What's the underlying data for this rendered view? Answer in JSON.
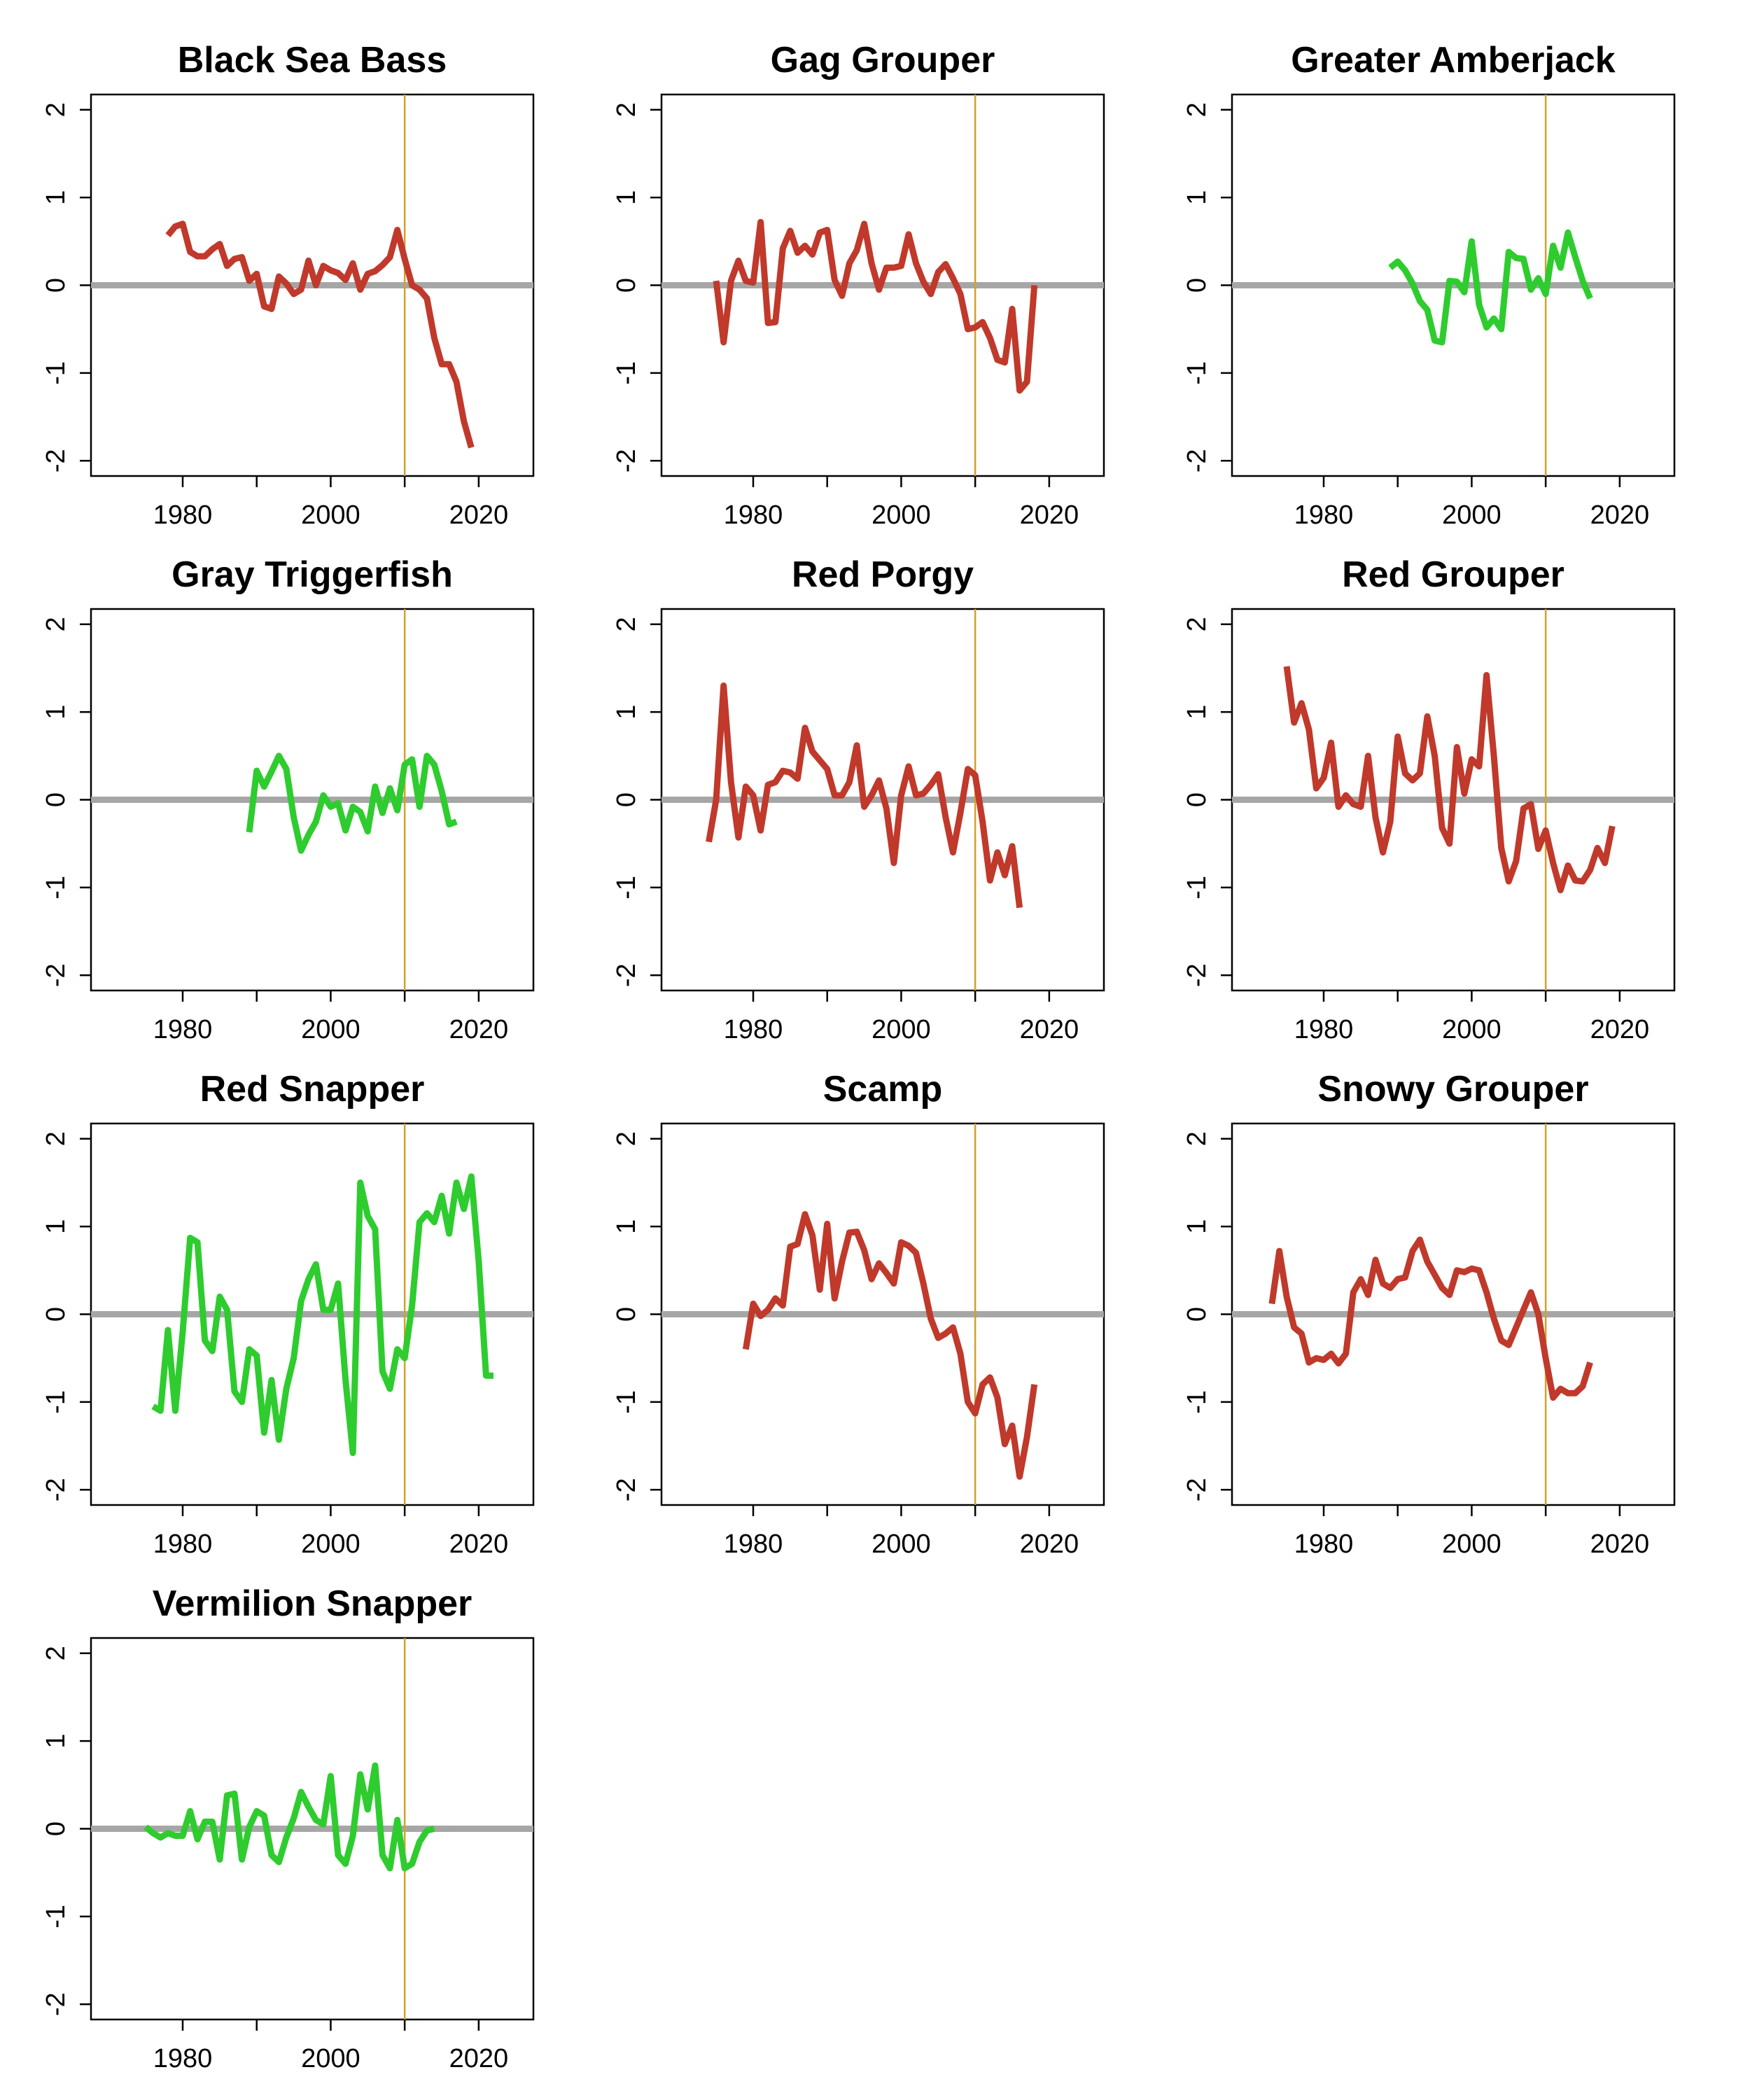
{
  "style": {
    "declining_color": "#c0392b",
    "increasing_color": "#2ecc2e",
    "zero_line_color": "#a6a6a6",
    "reference_line_color": "#d4a02a",
    "axis_color": "#000000"
  },
  "chart_data": [
    {
      "type": "line",
      "title": "Black Sea Bass",
      "xlabel": "",
      "ylabel": "",
      "xlim": [
        1970,
        2025
      ],
      "ylim": [
        -2,
        2
      ],
      "xticks": [
        "1980",
        "2000",
        "2020"
      ],
      "yticks": [
        "-2",
        "-1",
        "0",
        "1",
        "2"
      ],
      "reference_x": 2010,
      "zero_line": 0,
      "grid": false,
      "color": "#c0392b",
      "x": [
        1978,
        1979,
        1980,
        1981,
        1982,
        1983,
        1984,
        1985,
        1986,
        1987,
        1988,
        1989,
        1990,
        1991,
        1992,
        1993,
        1994,
        1995,
        1996,
        1997,
        1998,
        1999,
        2000,
        2001,
        2002,
        2003,
        2004,
        2005,
        2006,
        2007,
        2008,
        2009,
        2010,
        2011,
        2012,
        2013,
        2014,
        2015,
        2016,
        2017,
        2018,
        2019
      ],
      "y": [
        0.57,
        0.67,
        0.7,
        0.38,
        0.33,
        0.33,
        0.41,
        0.47,
        0.22,
        0.3,
        0.32,
        0.05,
        0.13,
        -0.24,
        -0.27,
        0.1,
        0.02,
        -0.1,
        -0.05,
        0.28,
        0.0,
        0.22,
        0.17,
        0.14,
        0.06,
        0.25,
        -0.05,
        0.13,
        0.16,
        0.23,
        0.32,
        0.63,
        0.3,
        0.0,
        -0.05,
        -0.15,
        -0.6,
        -0.9,
        -0.9,
        -1.1,
        -1.55,
        -1.85
      ]
    },
    {
      "type": "line",
      "title": "Gag Grouper",
      "xlabel": "",
      "ylabel": "",
      "xlim": [
        1970,
        2025
      ],
      "ylim": [
        -2,
        2
      ],
      "xticks": [
        "1980",
        "2000",
        "2020"
      ],
      "yticks": [
        "-2",
        "-1",
        "0",
        "1",
        "2"
      ],
      "reference_x": 2010,
      "zero_line": 0,
      "grid": false,
      "color": "#c0392b",
      "x": [
        1975,
        1976,
        1977,
        1978,
        1979,
        1980,
        1981,
        1982,
        1983,
        1984,
        1985,
        1986,
        1987,
        1988,
        1989,
        1990,
        1991,
        1992,
        1993,
        1994,
        1995,
        1996,
        1997,
        1998,
        1999,
        2000,
        2001,
        2002,
        2003,
        2004,
        2005,
        2006,
        2007,
        2008,
        2009,
        2010,
        2011,
        2012,
        2013,
        2014,
        2015,
        2016,
        2017,
        2018
      ],
      "y": [
        0.05,
        -0.65,
        0.05,
        0.28,
        0.05,
        0.03,
        0.72,
        -0.43,
        -0.42,
        0.42,
        0.62,
        0.37,
        0.45,
        0.35,
        0.6,
        0.63,
        0.06,
        -0.12,
        0.25,
        0.4,
        0.7,
        0.25,
        -0.05,
        0.2,
        0.2,
        0.22,
        0.58,
        0.25,
        0.04,
        -0.1,
        0.15,
        0.24,
        0.08,
        -0.1,
        -0.5,
        -0.48,
        -0.42,
        -0.6,
        -0.85,
        -0.88,
        -0.27,
        -1.2,
        -1.1,
        0.0
      ]
    },
    {
      "type": "line",
      "title": "Greater Amberjack",
      "xlabel": "",
      "ylabel": "",
      "xlim": [
        1970,
        2025
      ],
      "ylim": [
        -2,
        2
      ],
      "xticks": [
        "1980",
        "2000",
        "2020"
      ],
      "yticks": [
        "-2",
        "-1",
        "0",
        "1",
        "2"
      ],
      "reference_x": 2010,
      "zero_line": 0,
      "grid": false,
      "color": "#2ecc2e",
      "x": [
        1989,
        1990,
        1991,
        1992,
        1993,
        1994,
        1995,
        1996,
        1997,
        1998,
        1999,
        2000,
        2001,
        2002,
        2003,
        2004,
        2005,
        2006,
        2007,
        2008,
        2009,
        2010,
        2011,
        2012,
        2013,
        2014,
        2015,
        2016
      ],
      "y": [
        0.2,
        0.27,
        0.17,
        0.02,
        -0.18,
        -0.28,
        -0.63,
        -0.65,
        0.05,
        0.04,
        -0.08,
        0.5,
        -0.22,
        -0.48,
        -0.38,
        -0.5,
        0.38,
        0.31,
        0.3,
        -0.05,
        0.08,
        -0.1,
        0.45,
        0.2,
        0.6,
        0.32,
        0.05,
        -0.15
      ]
    },
    {
      "type": "line",
      "title": "Gray Triggerfish",
      "xlabel": "",
      "ylabel": "",
      "xlim": [
        1970,
        2025
      ],
      "ylim": [
        -2,
        2
      ],
      "xticks": [
        "1980",
        "2000",
        "2020"
      ],
      "yticks": [
        "-2",
        "-1",
        "0",
        "1",
        "2"
      ],
      "reference_x": 2010,
      "zero_line": 0,
      "grid": false,
      "color": "#2ecc2e",
      "x": [
        1989,
        1990,
        1991,
        1992,
        1993,
        1994,
        1995,
        1996,
        1997,
        1998,
        1999,
        2000,
        2001,
        2002,
        2003,
        2004,
        2005,
        2006,
        2007,
        2008,
        2009,
        2010,
        2011,
        2012,
        2013,
        2014,
        2015,
        2016,
        2017
      ],
      "y": [
        -0.37,
        0.33,
        0.15,
        0.32,
        0.5,
        0.35,
        -0.2,
        -0.58,
        -0.4,
        -0.25,
        0.05,
        -0.08,
        -0.04,
        -0.35,
        -0.08,
        -0.14,
        -0.36,
        0.15,
        -0.15,
        0.13,
        -0.12,
        0.4,
        0.46,
        -0.08,
        0.5,
        0.4,
        0.1,
        -0.28,
        -0.25
      ]
    },
    {
      "type": "line",
      "title": "Red Porgy",
      "xlabel": "",
      "ylabel": "",
      "xlim": [
        1970,
        2025
      ],
      "ylim": [
        -2,
        2
      ],
      "xticks": [
        "1980",
        "2000",
        "2020"
      ],
      "yticks": [
        "-2",
        "-1",
        "0",
        "1",
        "2"
      ],
      "reference_x": 2010,
      "zero_line": 0,
      "grid": false,
      "color": "#c0392b",
      "x": [
        1974,
        1975,
        1976,
        1977,
        1978,
        1979,
        1980,
        1981,
        1982,
        1983,
        1984,
        1985,
        1986,
        1987,
        1988,
        1989,
        1990,
        1991,
        1992,
        1993,
        1994,
        1995,
        1996,
        1997,
        1998,
        1999,
        2000,
        2001,
        2002,
        2003,
        2004,
        2005,
        2006,
        2007,
        2008,
        2009,
        2010,
        2011,
        2012,
        2013,
        2014,
        2015,
        2016
      ],
      "y": [
        -0.48,
        0.0,
        1.3,
        0.2,
        -0.43,
        0.15,
        0.05,
        -0.35,
        0.17,
        0.2,
        0.33,
        0.31,
        0.24,
        0.82,
        0.55,
        0.45,
        0.35,
        0.05,
        0.05,
        0.2,
        0.62,
        -0.08,
        0.05,
        0.22,
        -0.1,
        -0.72,
        0.05,
        0.38,
        0.05,
        0.07,
        0.17,
        0.29,
        -0.2,
        -0.6,
        -0.15,
        0.35,
        0.28,
        -0.25,
        -0.92,
        -0.6,
        -0.86,
        -0.53,
        -1.23
      ]
    },
    {
      "type": "line",
      "title": "Red Grouper",
      "xlabel": "",
      "ylabel": "",
      "xlim": [
        1970,
        2025
      ],
      "ylim": [
        -2,
        2
      ],
      "xticks": [
        "1980",
        "2000",
        "2020"
      ],
      "yticks": [
        "-2",
        "-1",
        "0",
        "1",
        "2"
      ],
      "reference_x": 2010,
      "zero_line": 0,
      "grid": false,
      "color": "#c0392b",
      "x": [
        1975,
        1976,
        1977,
        1978,
        1979,
        1980,
        1981,
        1982,
        1983,
        1984,
        1985,
        1986,
        1987,
        1988,
        1989,
        1990,
        1991,
        1992,
        1993,
        1994,
        1995,
        1996,
        1997,
        1998,
        1999,
        2000,
        2001,
        2002,
        2003,
        2004,
        2005,
        2006,
        2007,
        2008,
        2009,
        2010,
        2011,
        2012,
        2013,
        2014,
        2015,
        2016,
        2017,
        2018,
        2019
      ],
      "y": [
        1.52,
        0.88,
        1.1,
        0.8,
        0.13,
        0.25,
        0.65,
        -0.08,
        0.05,
        -0.05,
        -0.08,
        0.5,
        -0.2,
        -0.6,
        -0.25,
        0.72,
        0.3,
        0.22,
        0.3,
        0.95,
        0.5,
        -0.32,
        -0.5,
        0.6,
        0.07,
        0.46,
        0.38,
        1.42,
        0.5,
        -0.55,
        -0.93,
        -0.7,
        -0.1,
        -0.05,
        -0.56,
        -0.35,
        -0.72,
        -1.03,
        -0.75,
        -0.92,
        -0.93,
        -0.8,
        -0.55,
        -0.72,
        -0.3
      ]
    },
    {
      "type": "line",
      "title": "Red Snapper",
      "xlabel": "",
      "ylabel": "",
      "xlim": [
        1970,
        2025
      ],
      "ylim": [
        -2,
        2
      ],
      "xticks": [
        "1980",
        "2000",
        "2020"
      ],
      "yticks": [
        "-2",
        "-1",
        "0",
        "1",
        "2"
      ],
      "reference_x": 2010,
      "zero_line": 0,
      "grid": false,
      "color": "#2ecc2e",
      "x": [
        1976,
        1977,
        1978,
        1979,
        1980,
        1981,
        1982,
        1983,
        1984,
        1985,
        1986,
        1987,
        1988,
        1989,
        1990,
        1991,
        1992,
        1993,
        1994,
        1995,
        1996,
        1997,
        1998,
        1999,
        2000,
        2001,
        2002,
        2003,
        2004,
        2005,
        2006,
        2007,
        2008,
        2009,
        2010,
        2011,
        2012,
        2013,
        2014,
        2015,
        2016,
        2017,
        2018,
        2019,
        2020,
        2021,
        2022
      ],
      "y": [
        -1.05,
        -1.1,
        -0.18,
        -1.1,
        -0.2,
        0.87,
        0.82,
        -0.3,
        -0.42,
        0.2,
        0.05,
        -0.88,
        -1.0,
        -0.4,
        -0.47,
        -1.35,
        -0.75,
        -1.43,
        -0.85,
        -0.5,
        0.15,
        0.4,
        0.57,
        0.05,
        0.05,
        0.35,
        -0.75,
        -1.58,
        1.5,
        1.12,
        0.97,
        -0.65,
        -0.85,
        -0.4,
        -0.5,
        0.1,
        1.05,
        1.15,
        1.05,
        1.35,
        0.92,
        1.5,
        1.2,
        1.57,
        0.6,
        -0.7,
        -0.7
      ]
    },
    {
      "type": "line",
      "title": "Scamp",
      "xlabel": "",
      "ylabel": "",
      "xlim": [
        1970,
        2025
      ],
      "ylim": [
        -2,
        2
      ],
      "xticks": [
        "1980",
        "2000",
        "2020"
      ],
      "yticks": [
        "-2",
        "-1",
        "0",
        "1",
        "2"
      ],
      "reference_x": 2010,
      "zero_line": 0,
      "grid": false,
      "color": "#c0392b",
      "x": [
        1979,
        1980,
        1981,
        1982,
        1983,
        1984,
        1985,
        1986,
        1987,
        1988,
        1989,
        1990,
        1991,
        1992,
        1993,
        1994,
        1995,
        1996,
        1997,
        1998,
        1999,
        2000,
        2001,
        2002,
        2003,
        2004,
        2005,
        2006,
        2007,
        2008,
        2009,
        2010,
        2011,
        2012,
        2013,
        2014,
        2015,
        2016,
        2017,
        2018
      ],
      "y": [
        -0.4,
        0.12,
        -0.02,
        0.05,
        0.18,
        0.1,
        0.77,
        0.8,
        1.14,
        0.9,
        0.28,
        1.03,
        0.18,
        0.6,
        0.93,
        0.94,
        0.73,
        0.4,
        0.58,
        0.47,
        0.35,
        0.82,
        0.78,
        0.7,
        0.35,
        -0.05,
        -0.27,
        -0.22,
        -0.15,
        -0.45,
        -1.0,
        -1.13,
        -0.8,
        -0.72,
        -0.95,
        -1.48,
        -1.27,
        -1.85,
        -1.4,
        -0.8
      ]
    },
    {
      "type": "line",
      "title": "Snowy Grouper",
      "xlabel": "",
      "ylabel": "",
      "xlim": [
        1970,
        2025
      ],
      "ylim": [
        -2,
        2
      ],
      "xticks": [
        "1980",
        "2000",
        "2020"
      ],
      "yticks": [
        "-2",
        "-1",
        "0",
        "1",
        "2"
      ],
      "reference_x": 2010,
      "zero_line": 0,
      "grid": false,
      "color": "#c0392b",
      "x": [
        1973,
        1974,
        1975,
        1976,
        1977,
        1978,
        1979,
        1980,
        1981,
        1982,
        1983,
        1984,
        1985,
        1986,
        1987,
        1988,
        1989,
        1990,
        1991,
        1992,
        1993,
        1994,
        1995,
        1996,
        1997,
        1998,
        1999,
        2000,
        2001,
        2002,
        2003,
        2004,
        2005,
        2006,
        2007,
        2008,
        2009,
        2010,
        2011,
        2012,
        2013,
        2014,
        2015,
        2016
      ],
      "y": [
        0.12,
        0.72,
        0.2,
        -0.15,
        -0.22,
        -0.55,
        -0.5,
        -0.52,
        -0.45,
        -0.56,
        -0.45,
        0.25,
        0.4,
        0.22,
        0.62,
        0.35,
        0.3,
        0.4,
        0.42,
        0.72,
        0.85,
        0.6,
        0.45,
        0.3,
        0.22,
        0.5,
        0.48,
        0.52,
        0.5,
        0.25,
        -0.05,
        -0.3,
        -0.35,
        -0.15,
        0.05,
        0.25,
        0.0,
        -0.5,
        -0.95,
        -0.85,
        -0.9,
        -0.9,
        -0.82,
        -0.55
      ]
    },
    {
      "type": "line",
      "title": "Vermilion Snapper",
      "xlabel": "",
      "ylabel": "",
      "xlim": [
        1970,
        2025
      ],
      "ylim": [
        -2,
        2
      ],
      "xticks": [
        "1980",
        "2000",
        "2020"
      ],
      "yticks": [
        "-2",
        "-1",
        "0",
        "1",
        "2"
      ],
      "reference_x": 2010,
      "zero_line": 0,
      "grid": false,
      "color": "#2ecc2e",
      "x": [
        1975,
        1976,
        1977,
        1978,
        1979,
        1980,
        1981,
        1982,
        1983,
        1984,
        1985,
        1986,
        1987,
        1988,
        1989,
        1990,
        1991,
        1992,
        1993,
        1994,
        1995,
        1996,
        1997,
        1998,
        1999,
        2000,
        2001,
        2002,
        2003,
        2004,
        2005,
        2006,
        2007,
        2008,
        2009,
        2010,
        2011,
        2012,
        2013,
        2014
      ],
      "y": [
        0.02,
        -0.05,
        -0.1,
        -0.05,
        -0.08,
        -0.08,
        0.2,
        -0.12,
        0.08,
        0.08,
        -0.35,
        0.38,
        0.4,
        -0.35,
        0.02,
        0.2,
        0.15,
        -0.3,
        -0.38,
        -0.1,
        0.12,
        0.42,
        0.25,
        0.1,
        0.05,
        0.6,
        -0.3,
        -0.4,
        -0.08,
        0.62,
        0.22,
        0.72,
        -0.3,
        -0.45,
        0.1,
        -0.45,
        -0.4,
        -0.15,
        -0.02,
        0.0
      ]
    }
  ]
}
